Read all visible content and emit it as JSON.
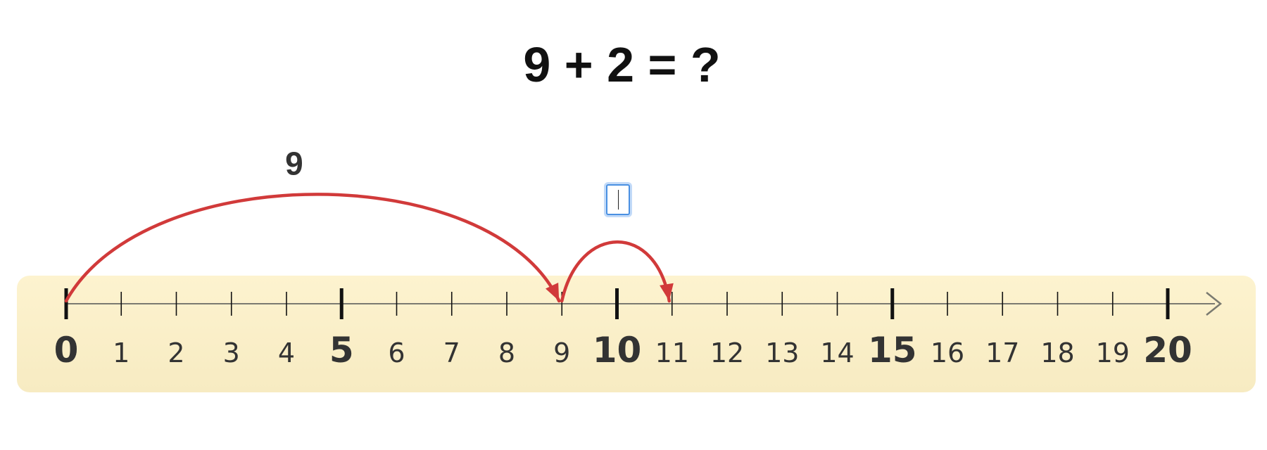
{
  "problem": {
    "equation": "9 + 2 = ?"
  },
  "number_line": {
    "min": 0,
    "max": 20,
    "major_every": 5,
    "labels": [
      "0",
      "1",
      "2",
      "3",
      "4",
      "5",
      "6",
      "7",
      "8",
      "9",
      "10",
      "11",
      "12",
      "13",
      "14",
      "15",
      "16",
      "17",
      "18",
      "19",
      "20"
    ]
  },
  "jumps": [
    {
      "from": 0,
      "to": 9,
      "label": "9"
    },
    {
      "from": 9,
      "to": 11,
      "label": ""
    }
  ],
  "answer_input": {
    "value": ""
  },
  "colors": {
    "band_top": "#fdf3cf",
    "band_bottom": "#f7ebc2",
    "arrow": "#d13a3a",
    "axis": "#7a7a70",
    "tick": "#111111",
    "label": "#333333"
  }
}
